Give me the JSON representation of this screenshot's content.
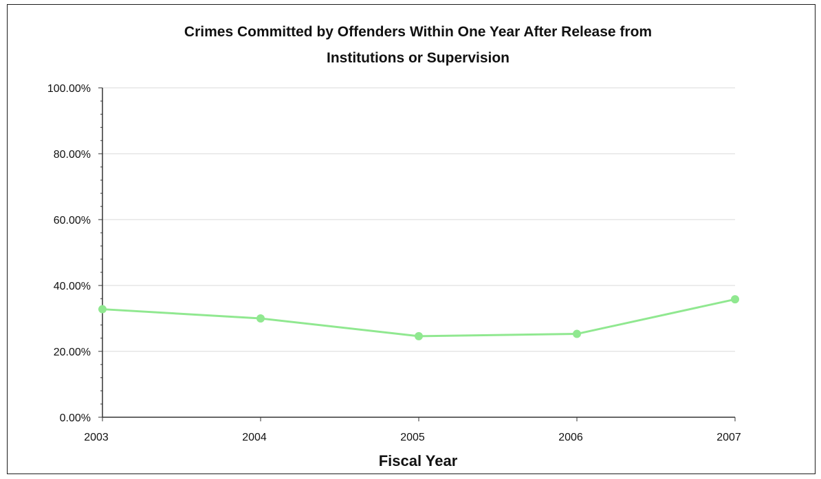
{
  "chart_data": {
    "type": "line",
    "title_line1": "Crimes Committed by Offenders Within One Year After Release from",
    "title_line2": "Institutions or Supervision",
    "xlabel": "Fiscal Year",
    "ylabel": "",
    "categories": [
      "2003",
      "2004",
      "2005",
      "2006",
      "2007"
    ],
    "series": [
      {
        "values": [
          32.8,
          30.0,
          24.6,
          25.3,
          35.8
        ],
        "color": "#90e890"
      }
    ],
    "ylim": [
      0,
      100
    ],
    "yticks": [
      0,
      20,
      40,
      60,
      80,
      100
    ],
    "ytick_labels": [
      "0.00%",
      "20.00%",
      "40.00%",
      "60.00%",
      "80.00%",
      "100.00%"
    ],
    "grid": true,
    "grid_color": "#d9d9d9",
    "axis_color": "#333333",
    "legend": "none"
  }
}
